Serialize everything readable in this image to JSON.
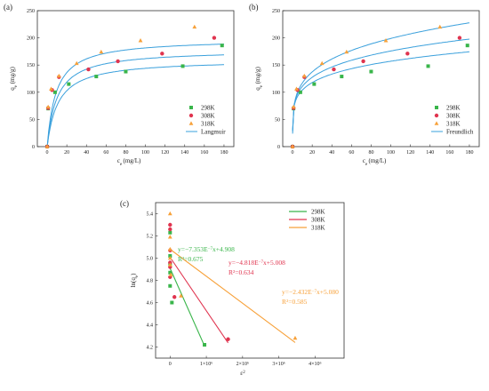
{
  "chart_data": [
    {
      "panel": "(a)",
      "type": "scatter",
      "xlabel": "ce (mg/L)",
      "ylabel": "qe (mg/g)",
      "xlim": [
        -10,
        190
      ],
      "ylim": [
        0,
        250
      ],
      "xticks": [
        0,
        20,
        40,
        60,
        80,
        100,
        120,
        140,
        160,
        180
      ],
      "yticks": [
        0,
        50,
        100,
        150,
        200,
        250
      ],
      "legend_position": "bottom-right",
      "series": [
        {
          "name": "298K",
          "marker": "square",
          "color": "#39b54a",
          "points": [
            [
              0,
              0
            ],
            [
              1,
              70
            ],
            [
              8,
              100
            ],
            [
              22,
              115
            ],
            [
              50,
              129
            ],
            [
              80,
              138
            ],
            [
              138,
              148
            ],
            [
              178,
              186
            ]
          ]
        },
        {
          "name": "308K",
          "marker": "circle",
          "color": "#e0344f",
          "points": [
            [
              0,
              0
            ],
            [
              1,
              71
            ],
            [
              5,
              104
            ],
            [
              12,
              128
            ],
            [
              42,
              142
            ],
            [
              72,
              157
            ],
            [
              117,
              171
            ],
            [
              170,
              200
            ]
          ]
        },
        {
          "name": "318K",
          "marker": "triangle",
          "color": "#f7a13a",
          "points": [
            [
              0,
              0
            ],
            [
              1,
              73
            ],
            [
              4,
              106
            ],
            [
              12,
              130
            ],
            [
              30,
              153
            ],
            [
              55,
              174
            ],
            [
              95,
              195
            ],
            [
              150,
              220
            ]
          ]
        }
      ],
      "fit": {
        "name": "Langmuir",
        "color": "#3aa0dc",
        "curves": [
          {
            "qm": 160,
            "KL": 0.09
          },
          {
            "qm": 178,
            "KL": 0.1
          },
          {
            "qm": 198,
            "KL": 0.11
          }
        ]
      }
    },
    {
      "panel": "(b)",
      "type": "scatter",
      "xlabel": "ce (mg/L)",
      "ylabel": "qe (mg/g)",
      "xlim": [
        -10,
        190
      ],
      "ylim": [
        0,
        250
      ],
      "xticks": [
        0,
        20,
        40,
        60,
        80,
        100,
        120,
        140,
        160,
        180
      ],
      "yticks": [
        0,
        50,
        100,
        150,
        200,
        250
      ],
      "legend_position": "bottom-right",
      "series": [
        {
          "name": "298K",
          "marker": "square",
          "color": "#39b54a",
          "points": [
            [
              0,
              0
            ],
            [
              1,
              70
            ],
            [
              8,
              100
            ],
            [
              22,
              115
            ],
            [
              50,
              129
            ],
            [
              80,
              138
            ],
            [
              138,
              148
            ],
            [
              178,
              186
            ]
          ]
        },
        {
          "name": "308K",
          "marker": "circle",
          "color": "#e0344f",
          "points": [
            [
              0,
              0
            ],
            [
              1,
              71
            ],
            [
              5,
              104
            ],
            [
              12,
              128
            ],
            [
              42,
              142
            ],
            [
              72,
              157
            ],
            [
              117,
              171
            ],
            [
              170,
              200
            ]
          ]
        },
        {
          "name": "318K",
          "marker": "triangle",
          "color": "#f7a13a",
          "points": [
            [
              0,
              0
            ],
            [
              1,
              73
            ],
            [
              4,
              106
            ],
            [
              12,
              130
            ],
            [
              30,
              153
            ],
            [
              55,
              174
            ],
            [
              95,
              195
            ],
            [
              150,
              220
            ]
          ]
        }
      ],
      "fit": {
        "name": "Freundlich",
        "color": "#3aa0dc",
        "curves": [
          {
            "KF": 69,
            "n": 5.6
          },
          {
            "KF": 70,
            "n": 5.0
          },
          {
            "KF": 69,
            "n": 4.35
          }
        ]
      }
    },
    {
      "panel": "(c)",
      "type": "scatter",
      "xlabel": "ε2",
      "ylabel": "ln(qe)",
      "xlim": [
        -400000,
        4800000
      ],
      "ylim": [
        4.1,
        5.5
      ],
      "xticks": [
        0,
        1000000,
        2000000,
        3000000,
        4000000
      ],
      "xtick_labels": [
        "0",
        "1×10⁶",
        "2×10⁶",
        "3×10⁶",
        "4×10⁶"
      ],
      "yticks": [
        4.2,
        4.4,
        4.6,
        4.8,
        5.0,
        5.2,
        5.4
      ],
      "legend_position": "top-right",
      "series": [
        {
          "name": "298K",
          "color": "#39b54a",
          "marker": "square",
          "slope": -7.353e-07,
          "intercept": 4.908,
          "line_x": [
            0,
            950000
          ],
          "points": [
            [
              0,
              5.23
            ],
            [
              0,
              5.02
            ],
            [
              0,
              4.95
            ],
            [
              0,
              4.87
            ],
            [
              0,
              4.75
            ],
            [
              50000,
              4.6
            ],
            [
              950000,
              4.22
            ]
          ]
        },
        {
          "name": "308K",
          "color": "#e0344f",
          "marker": "circle",
          "slope": -4.818e-07,
          "intercept": 5.008,
          "line_x": [
            0,
            1600000
          ],
          "points": [
            [
              0,
              5.3
            ],
            [
              0,
              5.26
            ],
            [
              0,
              5.07
            ],
            [
              0,
              4.96
            ],
            [
              0,
              4.92
            ],
            [
              0,
              4.83
            ],
            [
              120000,
              4.65
            ],
            [
              1600000,
              4.27
            ]
          ]
        },
        {
          "name": "318K",
          "color": "#f7a13a",
          "marker": "triangle",
          "slope": -2.432e-07,
          "intercept": 5.08,
          "line_x": [
            0,
            3450000
          ],
          "points": [
            [
              0,
              5.4
            ],
            [
              0,
              5.19
            ],
            [
              0,
              5.08
            ],
            [
              0,
              5.0
            ],
            [
              0,
              4.94
            ],
            [
              20000,
              4.85
            ],
            [
              300000,
              4.66
            ],
            [
              3450000,
              4.28
            ]
          ]
        }
      ],
      "annotations": [
        {
          "series": 0,
          "line1": "y=−7.353E",
          "exp": "−7",
          "rest": "x+4.908",
          "r2": "R²=0.675"
        },
        {
          "series": 1,
          "line1": "y=−4.818E",
          "exp": "−7",
          "rest": "x+5.008",
          "r2": "R²=0.634"
        },
        {
          "series": 2,
          "line1": "y=−2.432E",
          "exp": "−7",
          "rest": "x+5.080",
          "r2": "R²=0.585"
        }
      ]
    }
  ]
}
